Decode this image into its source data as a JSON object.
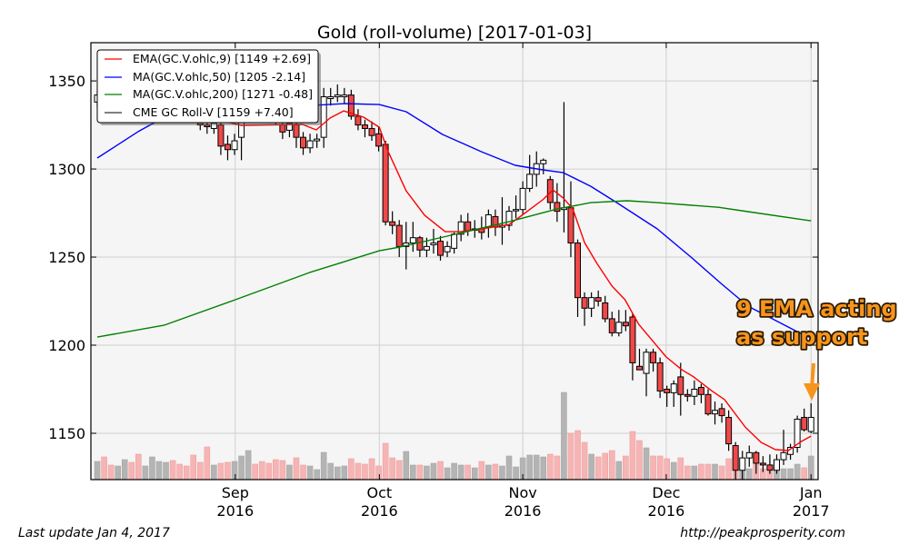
{
  "title": "Gold (roll-volume)  [2017-01-03]",
  "footer": {
    "left": "Last update Jan  4, 2017",
    "right": "http://peakprosperity.com"
  },
  "annotation": {
    "line1": "9 EMA acting",
    "line2": "as support",
    "color": "#f7941d"
  },
  "legend": [
    {
      "label": "EMA(GC.V.ohlc,9) [1149 +2.69]",
      "color": "#ff0000"
    },
    {
      "label": "MA(GC.V.ohlc,50) [1205 -2.14]",
      "color": "#0000ff"
    },
    {
      "label": "MA(GC.V.ohlc,200) [1271 -0.48]",
      "color": "#008000"
    },
    {
      "label": "CME GC Roll-V [1159 +7.40]",
      "color": "#000000"
    }
  ],
  "chart_data": {
    "type": "candlestick",
    "title": "Gold (roll-volume)  [2017-01-03]",
    "xlim": [
      -0.93,
      105.03
    ],
    "ylim": [
      1123.7,
      1371.7
    ],
    "volume_ylim": [
      0,
      481
    ],
    "grid": true,
    "legend_position": "top-left",
    "yticks": [
      1150,
      1200,
      1250,
      1300,
      1350
    ],
    "xticks": [
      {
        "index": 20.1,
        "month": "Sep",
        "year": "2016"
      },
      {
        "index": 41.1,
        "month": "Oct",
        "year": "2016"
      },
      {
        "index": 62.0,
        "month": "Nov",
        "year": "2016"
      },
      {
        "index": 82.9,
        "month": "Dec",
        "year": "2016"
      },
      {
        "index": 104.0,
        "month": "Jan",
        "year": "2017"
      }
    ],
    "colors": {
      "up": "#ffffff",
      "down": "#f04848",
      "vol_up": "#b4b4b4",
      "vol_down": "#f6b4b4"
    },
    "ohlc": [
      [
        1338,
        1344,
        1335,
        1342
      ],
      [
        1342,
        1348,
        1338,
        1340
      ],
      [
        1340,
        1344,
        1334,
        1336
      ],
      [
        1336,
        1342,
        1333,
        1340
      ],
      [
        1340,
        1347,
        1338,
        1345
      ],
      [
        1345,
        1349,
        1340,
        1342
      ],
      [
        1342,
        1345,
        1335,
        1337
      ],
      [
        1337,
        1342,
        1334,
        1340
      ],
      [
        1340,
        1346,
        1338,
        1344
      ],
      [
        1344,
        1350,
        1341,
        1347
      ],
      [
        1347,
        1352,
        1344,
        1349
      ],
      [
        1349,
        1351,
        1340,
        1342
      ],
      [
        1342,
        1345,
        1336,
        1338
      ],
      [
        1338,
        1341,
        1332,
        1335
      ],
      [
        1335,
        1338,
        1330,
        1333
      ],
      [
        1327,
        1331,
        1322,
        1325
      ],
      [
        1325,
        1328,
        1320,
        1324
      ],
      [
        1323,
        1330,
        1320,
        1326
      ],
      [
        1325,
        1328,
        1308,
        1313
      ],
      [
        1314,
        1319,
        1305,
        1311
      ],
      [
        1311,
        1320,
        1308,
        1316
      ],
      [
        1318,
        1338,
        1305,
        1331
      ],
      [
        1331,
        1340,
        1328,
        1337
      ],
      [
        1337,
        1341,
        1330,
        1334
      ],
      [
        1334,
        1338,
        1328,
        1331
      ],
      [
        1331,
        1335,
        1327,
        1329
      ],
      [
        1329,
        1333,
        1325,
        1327
      ],
      [
        1325,
        1328,
        1317,
        1321
      ],
      [
        1322,
        1329,
        1318,
        1326
      ],
      [
        1325,
        1328,
        1312,
        1318
      ],
      [
        1318,
        1321,
        1308,
        1312
      ],
      [
        1312,
        1320,
        1309,
        1316
      ],
      [
        1316,
        1320,
        1312,
        1317
      ],
      [
        1318,
        1346,
        1312,
        1341
      ],
      [
        1340,
        1346,
        1336,
        1341
      ],
      [
        1341,
        1348,
        1338,
        1342
      ],
      [
        1341,
        1346,
        1337,
        1342
      ],
      [
        1342,
        1345,
        1328,
        1330
      ],
      [
        1330,
        1334,
        1322,
        1325
      ],
      [
        1325,
        1328,
        1318,
        1323
      ],
      [
        1323,
        1327,
        1316,
        1319
      ],
      [
        1320,
        1324,
        1310,
        1313
      ],
      [
        1314,
        1316,
        1268,
        1270
      ],
      [
        1270,
        1276,
        1263,
        1268
      ],
      [
        1268,
        1271,
        1250,
        1256
      ],
      [
        1256,
        1270,
        1243,
        1258
      ],
      [
        1258,
        1270,
        1253,
        1261
      ],
      [
        1261,
        1262,
        1250,
        1254
      ],
      [
        1254,
        1261,
        1250,
        1256
      ],
      [
        1257,
        1266,
        1252,
        1258
      ],
      [
        1259,
        1262,
        1248,
        1251
      ],
      [
        1253,
        1259,
        1250,
        1256
      ],
      [
        1255,
        1264,
        1252,
        1263
      ],
      [
        1263,
        1274,
        1259,
        1270
      ],
      [
        1270,
        1275,
        1262,
        1265
      ],
      [
        1266,
        1271,
        1261,
        1266
      ],
      [
        1266,
        1273,
        1260,
        1264
      ],
      [
        1267,
        1277,
        1261,
        1274
      ],
      [
        1273,
        1277,
        1262,
        1267
      ],
      [
        1267,
        1284,
        1257,
        1268
      ],
      [
        1268,
        1279,
        1265,
        1276
      ],
      [
        1277,
        1285,
        1272,
        1277
      ],
      [
        1277,
        1293,
        1274,
        1289
      ],
      [
        1289,
        1308,
        1287,
        1297
      ],
      [
        1297,
        1310,
        1290,
        1303
      ],
      [
        1303,
        1306,
        1297,
        1305
      ],
      [
        1294,
        1296,
        1277,
        1281
      ],
      [
        1281,
        1292,
        1270,
        1276
      ],
      [
        1277,
        1338,
        1264,
        1278
      ],
      [
        1278,
        1293,
        1250,
        1258
      ],
      [
        1258,
        1260,
        1216,
        1227
      ],
      [
        1227,
        1230,
        1211,
        1221
      ],
      [
        1221,
        1230,
        1216,
        1227
      ],
      [
        1227,
        1231,
        1222,
        1225
      ],
      [
        1224,
        1228,
        1213,
        1215
      ],
      [
        1215,
        1219,
        1205,
        1207
      ],
      [
        1207,
        1220,
        1205,
        1213
      ],
      [
        1213,
        1220,
        1208,
        1211
      ],
      [
        1216,
        1218,
        1180,
        1190
      ],
      [
        1188,
        1198,
        1186,
        1186
      ],
      [
        1184,
        1198,
        1171,
        1196
      ],
      [
        1196,
        1198,
        1185,
        1190
      ],
      [
        1190,
        1193,
        1170,
        1174
      ],
      [
        1175,
        1177,
        1165,
        1173
      ],
      [
        1173,
        1180,
        1165,
        1178
      ],
      [
        1182,
        1190,
        1160,
        1172
      ],
      [
        1172,
        1175,
        1168,
        1171
      ],
      [
        1171,
        1180,
        1166,
        1175
      ],
      [
        1176,
        1178,
        1167,
        1172
      ],
      [
        1172,
        1175,
        1160,
        1161
      ],
      [
        1161,
        1168,
        1155,
        1163
      ],
      [
        1164,
        1167,
        1156,
        1160
      ],
      [
        1159,
        1163,
        1140,
        1144
      ],
      [
        1143,
        1145,
        1124,
        1129
      ],
      [
        1129,
        1140,
        1124,
        1136
      ],
      [
        1136,
        1143,
        1131,
        1139
      ],
      [
        1139,
        1140,
        1127,
        1133
      ],
      [
        1133,
        1137,
        1128,
        1132
      ],
      [
        1132,
        1138,
        1127,
        1129
      ],
      [
        1129,
        1138,
        1127,
        1135
      ],
      [
        1135,
        1152,
        1132,
        1139
      ],
      [
        1138,
        1144,
        1135,
        1142
      ],
      [
        1142,
        1160,
        1139,
        1158
      ],
      [
        1159,
        1164,
        1151,
        1152
      ],
      [
        1151,
        1167,
        1150,
        1159
      ]
    ],
    "volume": [
      20,
      25,
      16,
      15,
      22,
      19,
      28,
      15,
      25,
      20,
      19,
      21,
      17,
      15,
      27,
      19,
      36,
      16,
      18,
      19,
      20,
      26,
      32,
      17,
      20,
      18,
      22,
      21,
      16,
      24,
      16,
      15,
      11,
      30,
      18,
      14,
      15,
      23,
      18,
      17,
      23,
      15,
      40,
      24,
      21,
      31,
      16,
      16,
      15,
      18,
      20,
      13,
      18,
      16,
      16,
      13,
      20,
      16,
      17,
      15,
      26,
      14,
      24,
      27,
      27,
      25,
      28,
      26,
      96,
      51,
      54,
      41,
      28,
      25,
      29,
      32,
      20,
      26,
      53,
      43,
      35,
      26,
      26,
      23,
      19,
      24,
      15,
      15,
      17,
      17,
      17,
      15,
      23,
      17,
      13,
      12,
      17,
      12,
      9,
      12,
      12,
      12,
      17,
      13,
      26
    ],
    "series": [
      {
        "name": "EMA(GC.V.ohlc,9)",
        "color": "#ff0000",
        "points": [
          [
            0,
            1338
          ],
          [
            8,
            1335
          ],
          [
            15,
            1328
          ],
          [
            19.4,
            1326.3
          ],
          [
            20.9,
            1324.8
          ],
          [
            29.9,
            1325.3
          ],
          [
            31.9,
            1322.2
          ],
          [
            33.9,
            1328.9
          ],
          [
            35.9,
            1333
          ],
          [
            38.8,
            1329.4
          ],
          [
            41.1,
            1323.7
          ],
          [
            42.4,
            1309.8
          ],
          [
            45,
            1287.6
          ],
          [
            47.7,
            1273.7
          ],
          [
            50.7,
            1264.4
          ],
          [
            53,
            1264.4
          ],
          [
            56,
            1266
          ],
          [
            60,
            1268.5
          ],
          [
            61.7,
            1273.2
          ],
          [
            64.9,
            1282.5
          ],
          [
            66.4,
            1288.1
          ],
          [
            67.9,
            1283.5
          ],
          [
            69.3,
            1277.3
          ],
          [
            71,
            1258.2
          ],
          [
            72.8,
            1246.4
          ],
          [
            75,
            1233.5
          ],
          [
            76.9,
            1225.8
          ],
          [
            78.9,
            1211.8
          ],
          [
            82.9,
            1193.3
          ],
          [
            85.2,
            1186
          ],
          [
            86.9,
            1182
          ],
          [
            89.5,
            1174.2
          ],
          [
            91.4,
            1169.1
          ],
          [
            94.4,
            1153.6
          ],
          [
            96.7,
            1144.9
          ],
          [
            98.8,
            1140.7
          ],
          [
            100.7,
            1140.2
          ],
          [
            102.4,
            1144.9
          ],
          [
            104,
            1148.4
          ]
        ]
      },
      {
        "name": "MA(GC.V.ohlc,50)",
        "color": "#0000ff",
        "points": [
          [
            0,
            1306.2
          ],
          [
            6.1,
            1321.6
          ],
          [
            8.3,
            1326.3
          ],
          [
            16,
            1331
          ],
          [
            26,
            1335
          ],
          [
            36.1,
            1337.1
          ],
          [
            41.1,
            1336.6
          ],
          [
            45,
            1332.5
          ],
          [
            50.3,
            1319.6
          ],
          [
            56,
            1309.8
          ],
          [
            60.9,
            1302.1
          ],
          [
            64.9,
            1299.5
          ],
          [
            67.9,
            1297.9
          ],
          [
            71.9,
            1290.2
          ],
          [
            75.5,
            1281.4
          ],
          [
            81.6,
            1266
          ],
          [
            86.5,
            1250
          ],
          [
            90.9,
            1235
          ],
          [
            94.8,
            1222.2
          ],
          [
            102.4,
            1206.8
          ],
          [
            104,
            1204.2
          ]
        ]
      },
      {
        "name": "MA(GC.V.ohlc,200)",
        "color": "#008000",
        "points": [
          [
            0,
            1204.6
          ],
          [
            9.7,
            1211.3
          ],
          [
            20.1,
            1225.8
          ],
          [
            30.9,
            1241.2
          ],
          [
            41.1,
            1253.6
          ],
          [
            44.1,
            1255.7
          ],
          [
            52.1,
            1262.9
          ],
          [
            60,
            1270.1
          ],
          [
            67,
            1277.3
          ],
          [
            71.9,
            1280.9
          ],
          [
            77.2,
            1282
          ],
          [
            81.6,
            1280.9
          ],
          [
            90.5,
            1278.3
          ],
          [
            94.8,
            1275.8
          ],
          [
            104,
            1270.6
          ]
        ]
      }
    ]
  }
}
